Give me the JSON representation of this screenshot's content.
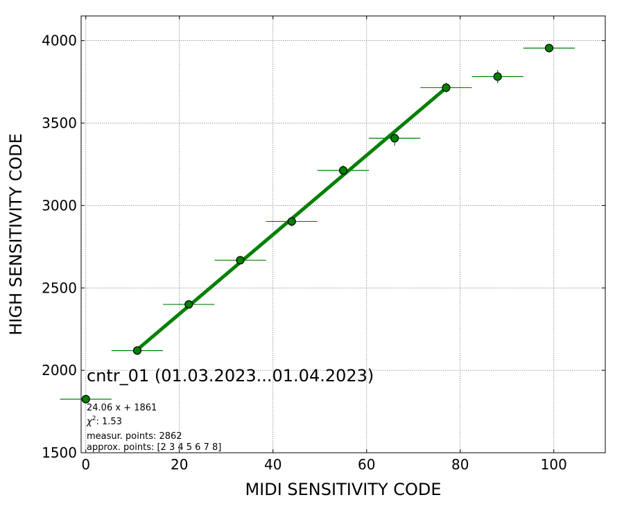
{
  "chart_data": {
    "type": "scatter",
    "title": "cntr_01 (01.03.2023...01.04.2023)",
    "xlabel": "MIDI SENSITIVITY CODE",
    "ylabel": "HIGH SENSITIVITY CODE",
    "xlim": [
      -1,
      111
    ],
    "ylim": [
      1500,
      4150
    ],
    "xticks": [
      0,
      20,
      40,
      60,
      80,
      100
    ],
    "yticks": [
      1500,
      2000,
      2500,
      3000,
      3500,
      4000
    ],
    "grid": true,
    "points": [
      {
        "x": 0,
        "y": 1825,
        "xerr": 5.5,
        "yerr": 0
      },
      {
        "x": 11,
        "y": 2120,
        "xerr": 5.5,
        "yerr": 15
      },
      {
        "x": 22,
        "y": 2400,
        "xerr": 5.5,
        "yerr": 20
      },
      {
        "x": 33,
        "y": 2668,
        "xerr": 5.5,
        "yerr": 25
      },
      {
        "x": 44,
        "y": 2903,
        "xerr": 5.5,
        "yerr": 30
      },
      {
        "x": 55,
        "y": 3213,
        "xerr": 5.5,
        "yerr": 30
      },
      {
        "x": 66,
        "y": 3408,
        "xerr": 5.5,
        "yerr": 45
      },
      {
        "x": 77,
        "y": 3715,
        "xerr": 5.5,
        "yerr": 30
      },
      {
        "x": 88,
        "y": 3782,
        "xerr": 5.5,
        "yerr": 40
      },
      {
        "x": 99,
        "y": 3955,
        "xerr": 5.5,
        "yerr": 15
      }
    ],
    "fit": {
      "slope": 24.06,
      "intercept": 1861,
      "x_range": [
        11,
        77
      ]
    },
    "colors": {
      "marker": "#008000",
      "marker_edge": "#000000",
      "fit_line": "#008000",
      "errorbar": "#008000",
      "grid": "#808080"
    },
    "annotations": {
      "equation": "24.06 x + 1861",
      "chi2_label": "χ",
      "chi2_sup": "2",
      "chi2_value": ": 1.53",
      "measur_points": "measur. points: 2862",
      "approx_points": "approx. points: [2 3 4 5 6 7 8]"
    }
  }
}
